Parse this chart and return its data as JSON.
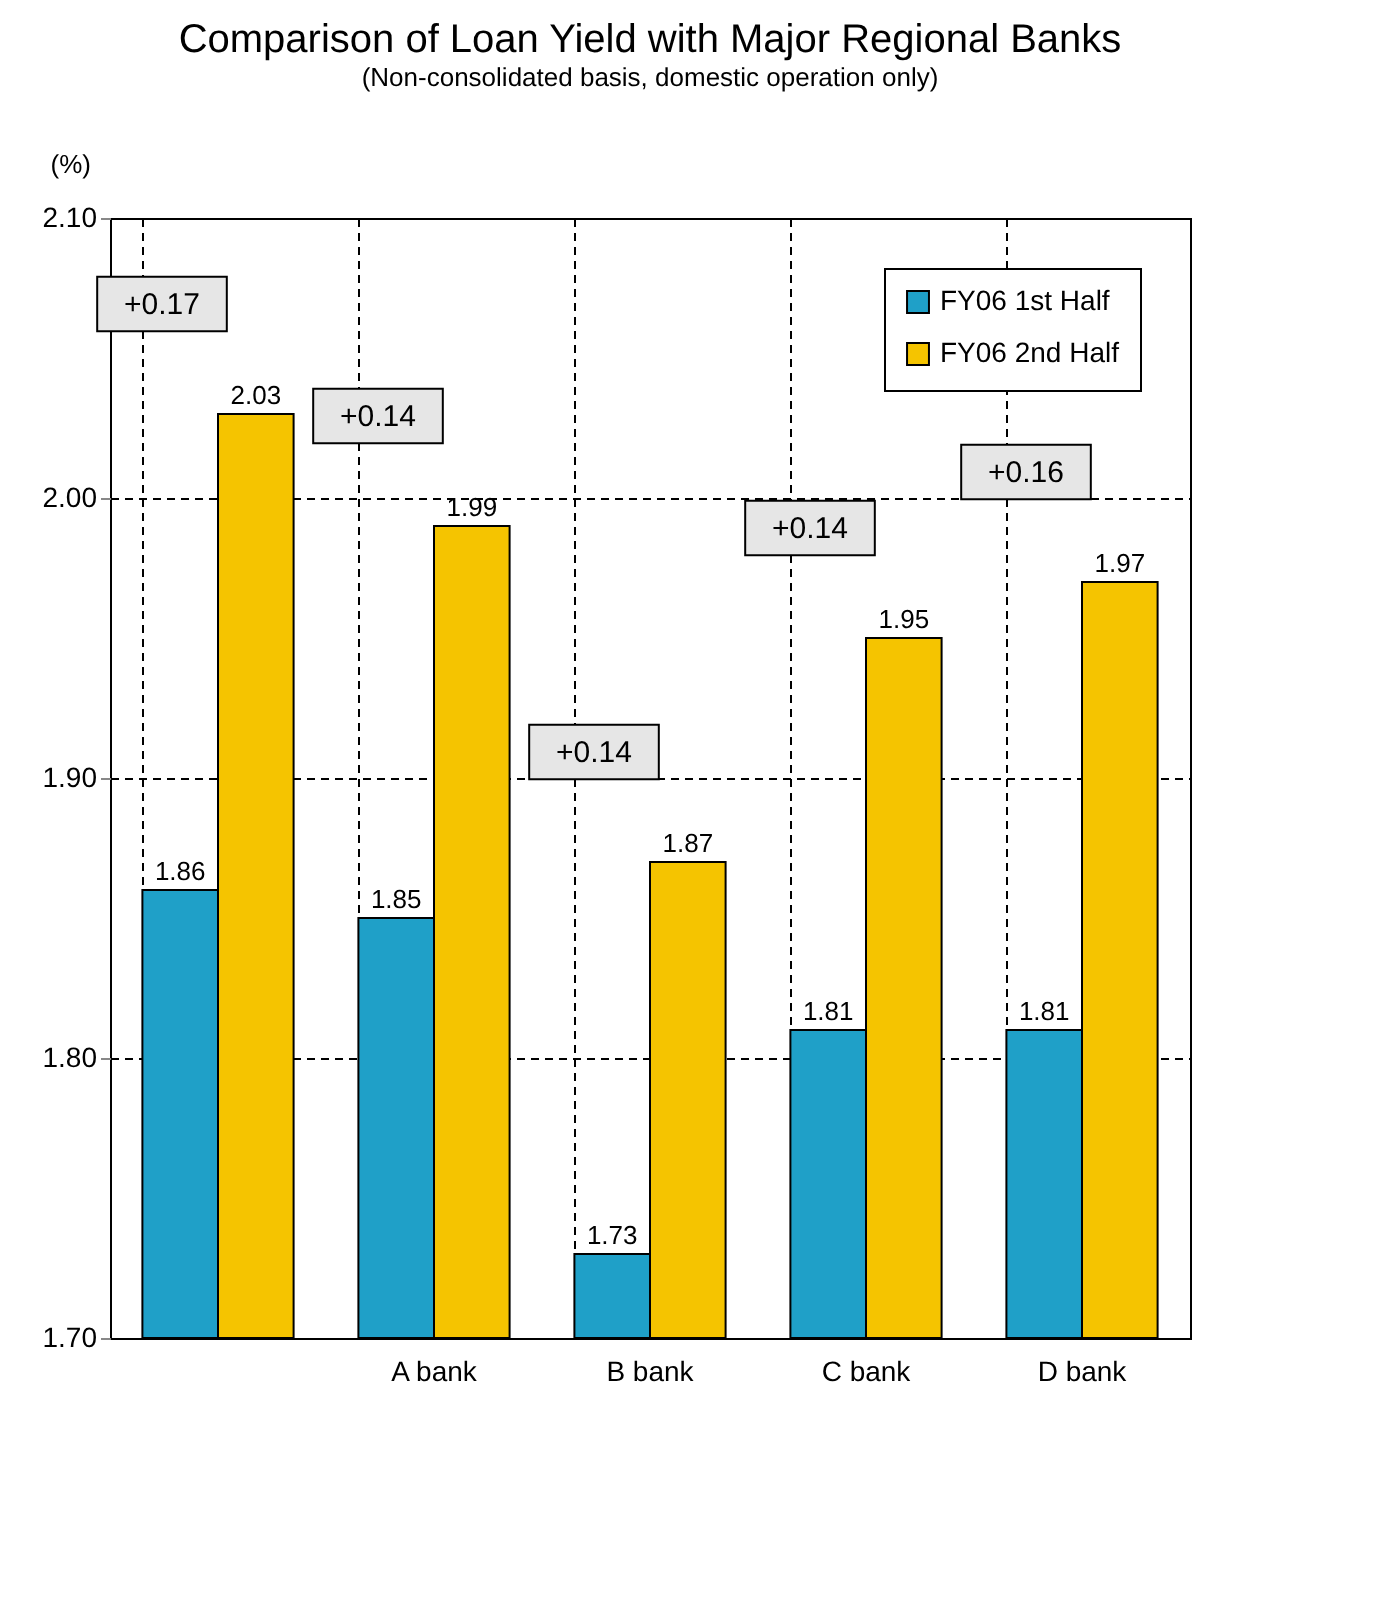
{
  "chart_data": {
    "type": "bar",
    "title": "Comparison of Loan Yield with Major Regional Banks",
    "subtitle": "(Non-consolidated basis, domestic operation only)",
    "ylabel": "(%)",
    "categories": [
      null,
      "A bank",
      "B bank",
      "C bank",
      "D bank"
    ],
    "series": [
      {
        "name": "FY06 1st Half",
        "color": "#1fa0c8",
        "values": [
          1.86,
          1.85,
          1.73,
          1.81,
          1.81
        ]
      },
      {
        "name": "FY06 2nd Half",
        "color": "#f5c400",
        "values": [
          2.03,
          1.99,
          1.87,
          1.95,
          1.97
        ]
      }
    ],
    "ylim": [
      1.7,
      2.1
    ],
    "yticks": [
      {
        "value": 1.7,
        "label": "1.70"
      },
      {
        "value": 1.8,
        "label": "1.80"
      },
      {
        "value": 1.9,
        "label": "1.90"
      },
      {
        "value": 2.0,
        "label": "2.00"
      },
      {
        "value": 2.1,
        "label": "2.10"
      }
    ],
    "annotations": [
      "+0.17",
      "+0.14",
      "+0.14",
      "+0.14",
      "+0.16"
    ],
    "data_labels": true,
    "grid": true,
    "legend": "top right"
  }
}
